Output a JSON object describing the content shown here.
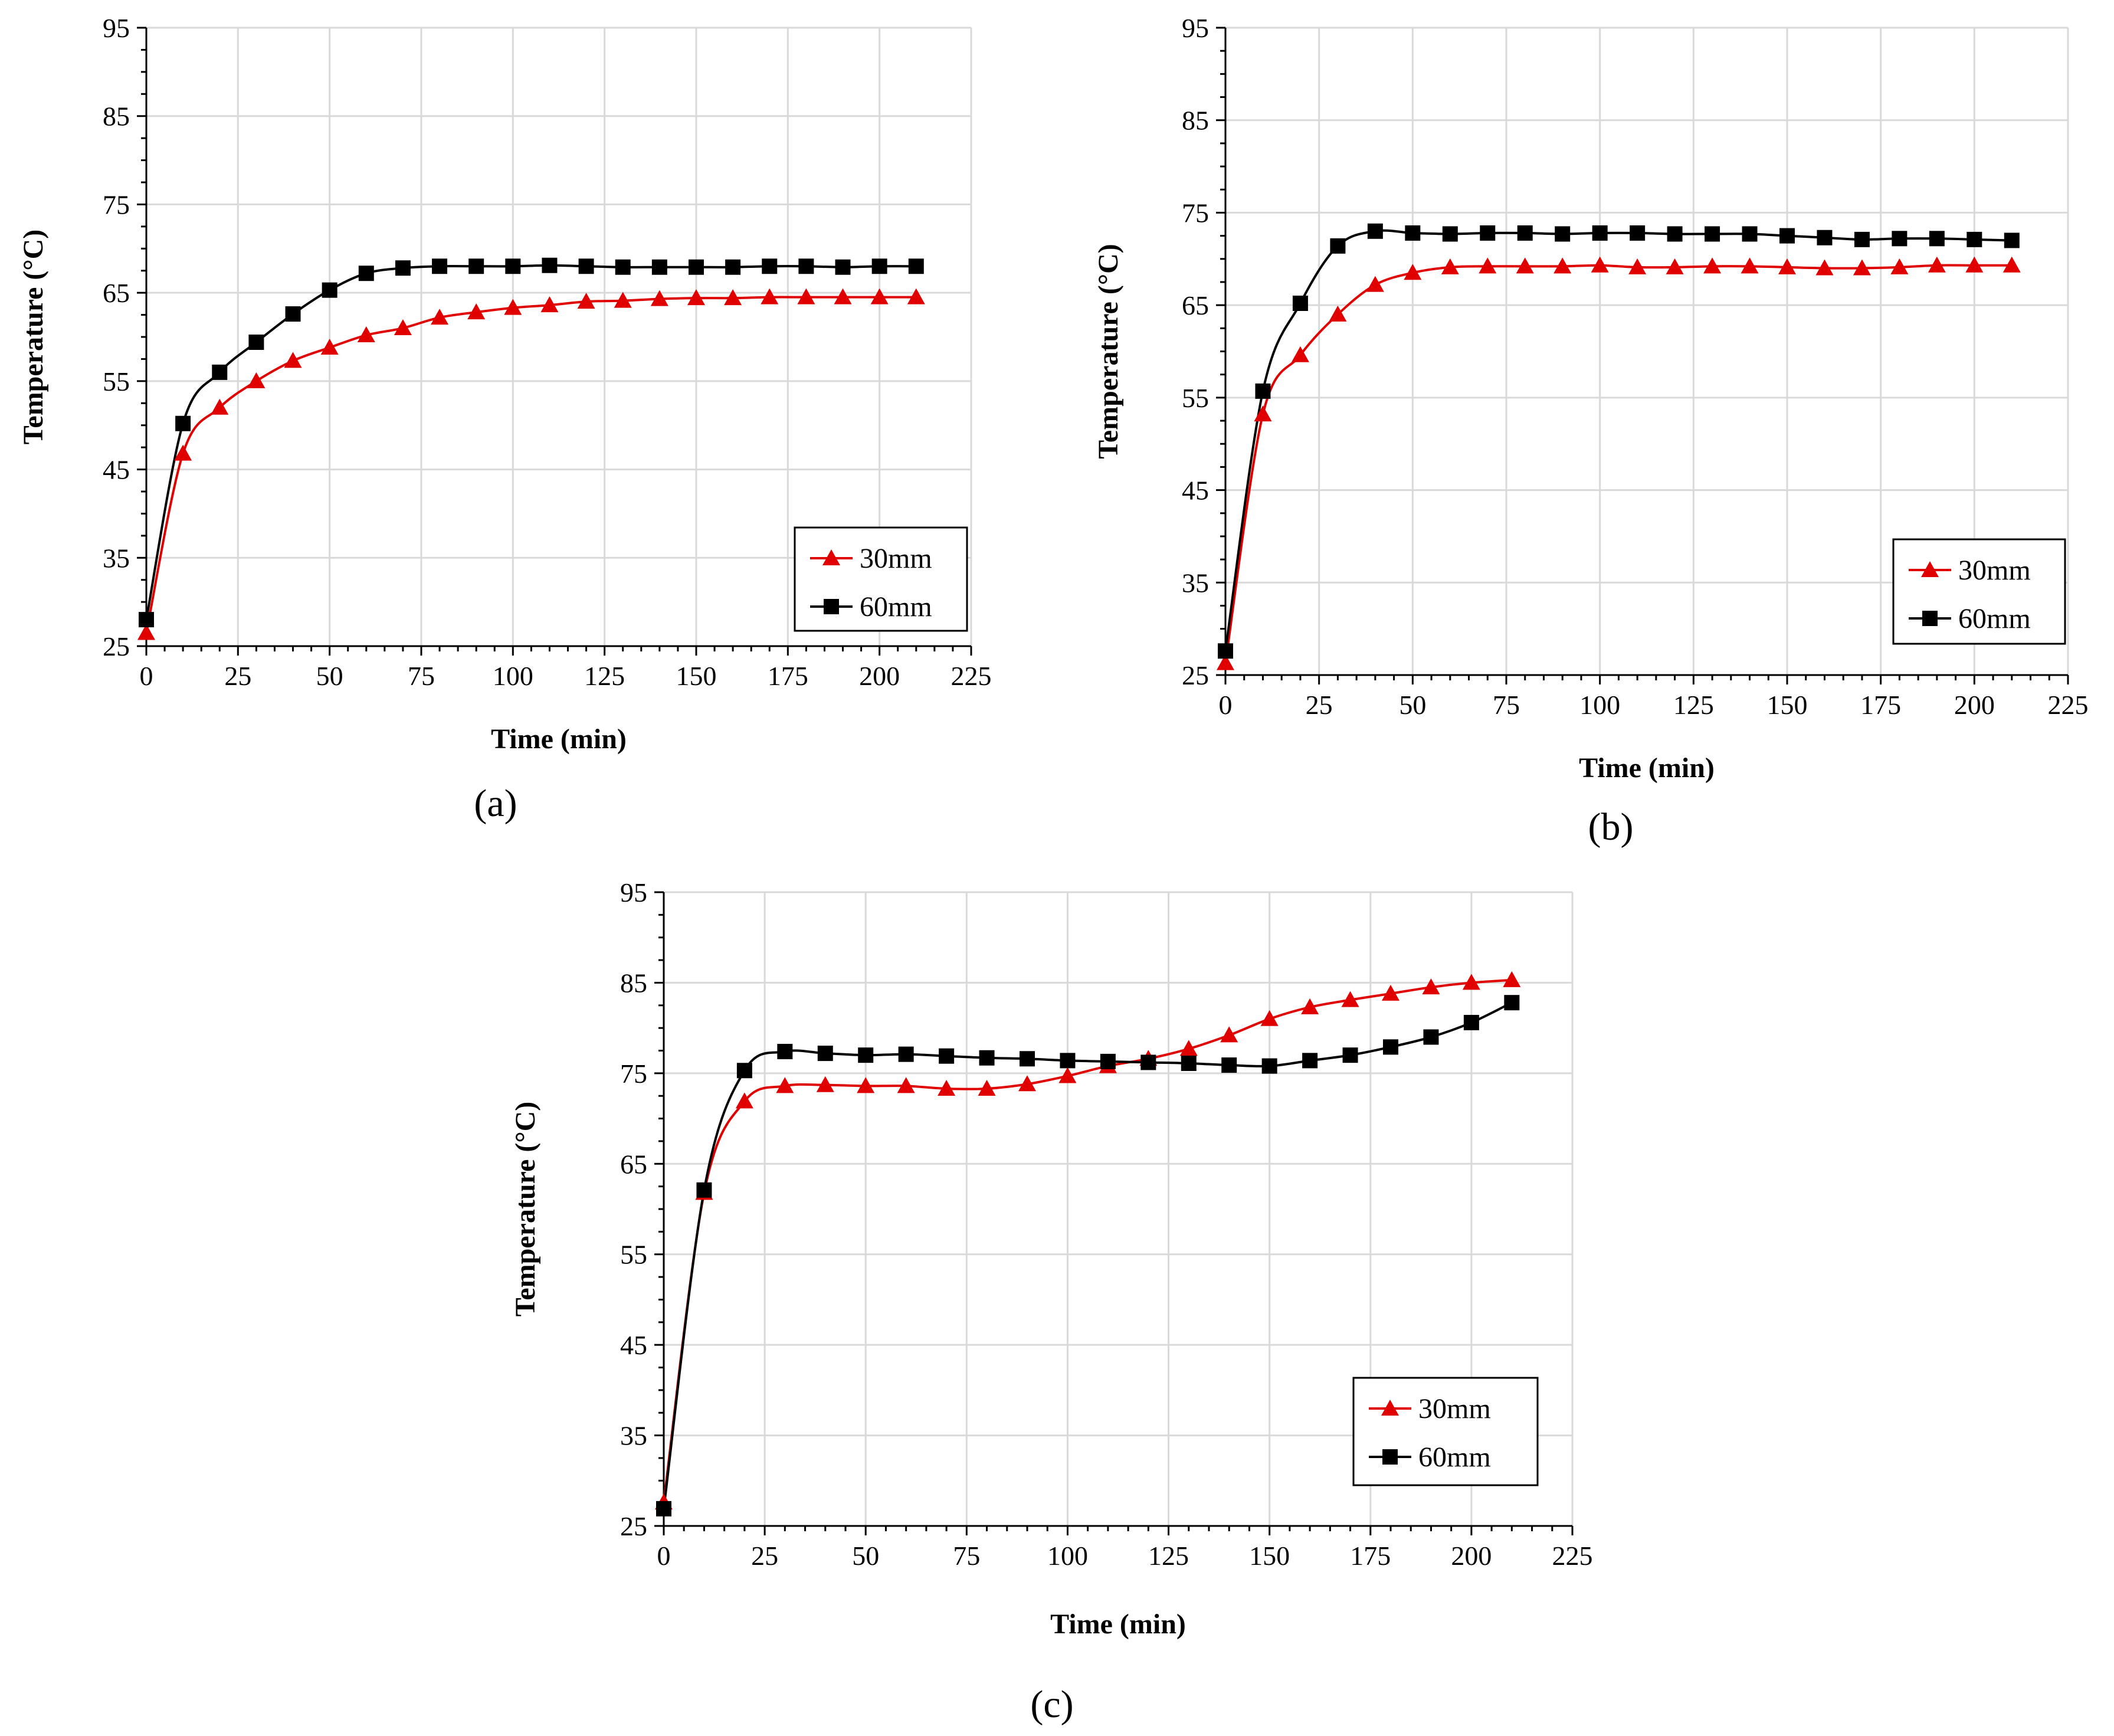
{
  "chart_data": [
    {
      "panel": "a",
      "caption": "(a)",
      "type": "line",
      "title": "",
      "xlabel": "Time (min)",
      "ylabel": "Temperature (°C)",
      "xlim": [
        0,
        225
      ],
      "ylim": [
        25,
        95
      ],
      "xticks": [
        "0",
        "25",
        "50",
        "75",
        "100",
        "125",
        "150",
        "175",
        "200",
        "225"
      ],
      "yticks": [
        "25",
        "35",
        "45",
        "55",
        "65",
        "75",
        "85",
        "95"
      ],
      "grid": true,
      "legend_position": "bottom-right",
      "x": [
        0,
        10,
        20,
        30,
        40,
        50,
        60,
        70,
        80,
        90,
        100,
        110,
        120,
        130,
        140,
        150,
        160,
        170,
        180,
        190,
        200,
        210
      ],
      "series": [
        {
          "name": "30mm",
          "marker": "triangle",
          "color": "#e00000",
          "values": [
            26.5,
            46.8,
            52.0,
            55.0,
            57.3,
            58.8,
            60.2,
            61.0,
            62.2,
            62.8,
            63.3,
            63.6,
            64.0,
            64.1,
            64.3,
            64.4,
            64.4,
            64.5,
            64.5,
            64.5,
            64.5,
            64.5
          ]
        },
        {
          "name": "60mm",
          "marker": "square",
          "color": "#000000",
          "values": [
            28.0,
            50.2,
            56.0,
            59.4,
            62.6,
            65.3,
            67.2,
            67.8,
            68.0,
            68.0,
            68.0,
            68.1,
            68.0,
            67.9,
            67.9,
            67.9,
            67.9,
            68.0,
            68.0,
            67.9,
            68.0,
            68.0
          ]
        }
      ]
    },
    {
      "panel": "b",
      "caption": "(b)",
      "type": "line",
      "title": "",
      "xlabel": "Time (min)",
      "ylabel": "Temperature (°C)",
      "xlim": [
        0,
        225
      ],
      "ylim": [
        25,
        95
      ],
      "xticks": [
        "0",
        "25",
        "50",
        "75",
        "100",
        "125",
        "150",
        "175",
        "200",
        "225"
      ],
      "yticks": [
        "25",
        "35",
        "45",
        "55",
        "65",
        "75",
        "85",
        "95"
      ],
      "grid": true,
      "legend_position": "bottom-right",
      "x": [
        0,
        10,
        20,
        30,
        40,
        50,
        60,
        70,
        80,
        90,
        100,
        110,
        120,
        130,
        140,
        150,
        160,
        170,
        180,
        190,
        200,
        210
      ],
      "series": [
        {
          "name": "30mm",
          "marker": "triangle",
          "color": "#e00000",
          "values": [
            26.3,
            53.2,
            59.6,
            64.0,
            67.2,
            68.5,
            69.1,
            69.2,
            69.2,
            69.2,
            69.3,
            69.1,
            69.1,
            69.2,
            69.2,
            69.1,
            69.0,
            69.0,
            69.1,
            69.3,
            69.3,
            69.3
          ]
        },
        {
          "name": "60mm",
          "marker": "square",
          "color": "#000000",
          "values": [
            27.6,
            55.7,
            65.2,
            71.4,
            73.0,
            72.8,
            72.7,
            72.8,
            72.8,
            72.7,
            72.8,
            72.8,
            72.7,
            72.7,
            72.7,
            72.5,
            72.3,
            72.1,
            72.2,
            72.2,
            72.1,
            72.0
          ]
        }
      ]
    },
    {
      "panel": "c",
      "caption": "(c)",
      "type": "line",
      "title": "",
      "xlabel": "Time (min)",
      "ylabel": "Temperature (°C)",
      "xlim": [
        0,
        225
      ],
      "ylim": [
        25,
        95
      ],
      "xticks": [
        "0",
        "25",
        "50",
        "75",
        "100",
        "125",
        "150",
        "175",
        "200",
        "225"
      ],
      "yticks": [
        "25",
        "35",
        "45",
        "55",
        "65",
        "75",
        "85",
        "95"
      ],
      "grid": true,
      "legend_position": "bottom-right",
      "x": [
        0,
        10,
        20,
        30,
        40,
        50,
        60,
        70,
        80,
        90,
        100,
        110,
        120,
        130,
        140,
        150,
        160,
        170,
        180,
        190,
        200,
        210
      ],
      "series": [
        {
          "name": "30mm",
          "marker": "triangle",
          "color": "#e00000",
          "values": [
            27.6,
            61.8,
            71.9,
            73.6,
            73.7,
            73.6,
            73.6,
            73.3,
            73.3,
            73.8,
            74.7,
            75.8,
            76.6,
            77.7,
            79.2,
            81.0,
            82.3,
            83.1,
            83.8,
            84.5,
            85.0,
            85.3
          ]
        },
        {
          "name": "60mm",
          "marker": "square",
          "color": "#000000",
          "values": [
            26.9,
            62.1,
            75.3,
            77.4,
            77.2,
            77.0,
            77.1,
            76.9,
            76.7,
            76.6,
            76.4,
            76.3,
            76.2,
            76.1,
            75.9,
            75.8,
            76.4,
            77.0,
            77.9,
            79.0,
            80.6,
            82.8
          ]
        }
      ]
    }
  ]
}
